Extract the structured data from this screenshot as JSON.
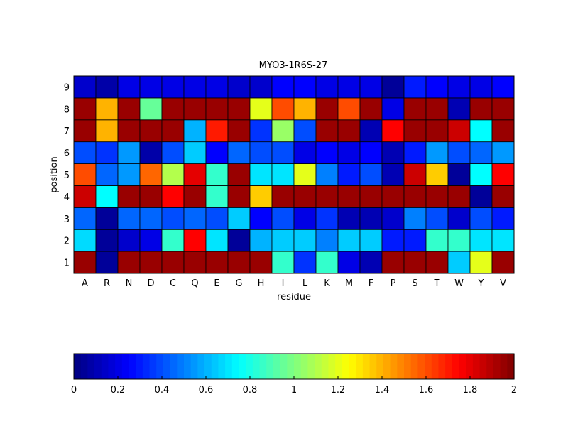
{
  "chart_data": {
    "type": "heatmap",
    "title": "MYO3-1R6S-27",
    "xlabel": "residue",
    "ylabel": "position",
    "x_categories": [
      "A",
      "R",
      "N",
      "D",
      "C",
      "Q",
      "E",
      "G",
      "H",
      "I",
      "L",
      "K",
      "M",
      "F",
      "P",
      "S",
      "T",
      "W",
      "Y",
      "V"
    ],
    "y_categories": [
      "1",
      "2",
      "3",
      "4",
      "5",
      "6",
      "7",
      "8",
      "9"
    ],
    "colormap": "jet",
    "clim": [
      0,
      2
    ],
    "colorbar": {
      "placement": "bottom",
      "ticks": [
        0,
        0.2,
        0.4,
        0.6,
        0.8,
        1,
        1.2,
        1.4,
        1.6,
        1.8,
        2
      ],
      "tick_labels": [
        "0",
        "0.2",
        "0.4",
        "0.6",
        "0.8",
        "1",
        "1.2",
        "1.4",
        "1.6",
        "1.8",
        "2"
      ]
    },
    "values": [
      [
        1.95,
        0.05,
        1.95,
        1.95,
        1.95,
        1.95,
        1.95,
        1.95,
        1.95,
        0.85,
        0.35,
        0.85,
        0.2,
        0.1,
        1.95,
        1.95,
        1.95,
        0.65,
        1.2,
        1.95
      ],
      [
        0.68,
        0.05,
        0.15,
        0.2,
        0.85,
        1.75,
        0.7,
        0.05,
        0.6,
        0.65,
        0.65,
        0.5,
        0.65,
        0.65,
        0.3,
        0.3,
        0.85,
        0.85,
        0.7,
        0.7
      ],
      [
        0.45,
        0.05,
        0.45,
        0.45,
        0.4,
        0.45,
        0.4,
        0.65,
        0.25,
        0.4,
        0.2,
        0.35,
        0.1,
        0.1,
        0.15,
        0.5,
        0.4,
        0.15,
        0.4,
        0.3
      ],
      [
        1.85,
        0.75,
        1.95,
        1.95,
        1.75,
        1.95,
        0.85,
        1.95,
        1.35,
        1.95,
        1.95,
        1.95,
        1.95,
        1.95,
        1.95,
        1.95,
        1.95,
        1.95,
        0.05,
        1.95
      ],
      [
        1.6,
        0.45,
        0.55,
        1.55,
        1.1,
        1.8,
        0.85,
        1.95,
        0.7,
        0.7,
        1.2,
        0.5,
        0.3,
        0.4,
        0.1,
        1.85,
        1.35,
        0.05,
        0.75,
        1.75
      ],
      [
        0.4,
        0.35,
        0.55,
        0.08,
        0.4,
        0.65,
        0.25,
        0.45,
        0.4,
        0.4,
        0.2,
        0.25,
        0.2,
        0.25,
        0.1,
        0.3,
        0.55,
        0.4,
        0.45,
        0.55
      ],
      [
        1.95,
        1.4,
        1.95,
        1.95,
        1.95,
        0.6,
        1.7,
        1.95,
        0.35,
        1.05,
        0.4,
        1.95,
        1.95,
        0.1,
        1.75,
        1.95,
        1.95,
        1.85,
        0.75,
        1.95
      ],
      [
        1.95,
        1.4,
        1.95,
        0.95,
        1.95,
        1.95,
        1.95,
        1.95,
        1.2,
        1.6,
        1.4,
        1.95,
        1.6,
        1.95,
        0.2,
        1.95,
        1.95,
        0.1,
        1.95,
        1.95
      ],
      [
        0.15,
        0.08,
        0.2,
        0.2,
        0.2,
        0.2,
        0.2,
        0.15,
        0.15,
        0.25,
        0.25,
        0.2,
        0.2,
        0.2,
        0.05,
        0.3,
        0.25,
        0.2,
        0.2,
        0.25
      ]
    ]
  }
}
